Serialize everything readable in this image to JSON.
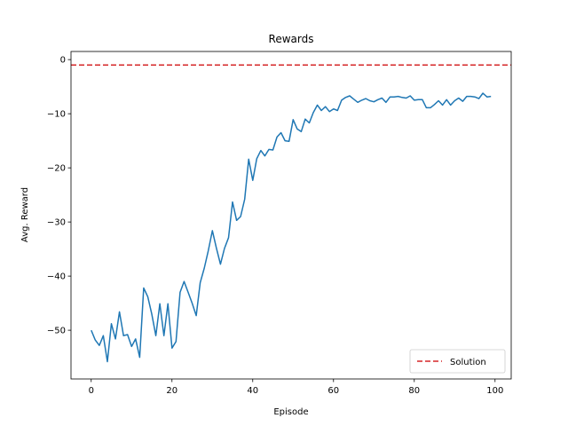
{
  "chart_data": {
    "type": "line",
    "title": "Rewards",
    "xlabel": "Episode",
    "ylabel": "Avg. Reward",
    "xlim": [
      -5,
      104
    ],
    "ylim": [
      -59,
      1.5
    ],
    "xticks": [
      0,
      20,
      40,
      60,
      80,
      100
    ],
    "yticks": [
      0,
      -10,
      -20,
      -30,
      -40,
      -50
    ],
    "grid": false,
    "legend_position": "lower right",
    "series": [
      {
        "color": "#1f77b4",
        "x": [
          0,
          1,
          2,
          3,
          4,
          5,
          6,
          7,
          8,
          9,
          10,
          11,
          12,
          13,
          14,
          15,
          16,
          17,
          18,
          19,
          20,
          21,
          22,
          23,
          24,
          25,
          26,
          27,
          28,
          29,
          30,
          31,
          32,
          33,
          34,
          35,
          36,
          37,
          38,
          39,
          40,
          41,
          42,
          43,
          44,
          45,
          46,
          47,
          48,
          49,
          50,
          51,
          52,
          53,
          54,
          55,
          56,
          57,
          58,
          59,
          60,
          61,
          62,
          63,
          64,
          65,
          66,
          67,
          68,
          69,
          70,
          71,
          72,
          73,
          74,
          75,
          76,
          77,
          78,
          79,
          80,
          81,
          82,
          83,
          84,
          85,
          86,
          87,
          88,
          89,
          90,
          91,
          92,
          93,
          94,
          95,
          96,
          97,
          98,
          99
        ],
        "values": [
          -50,
          -51.8,
          -52.8,
          -51,
          -55.8,
          -48.8,
          -51.6,
          -46.6,
          -51,
          -50.8,
          -53,
          -51.6,
          -55,
          -42.2,
          -43.8,
          -47,
          -51,
          -45.1,
          -51,
          -45.1,
          -53.3,
          -52.1,
          -43,
          -41,
          -43,
          -45,
          -47.3,
          -41.2,
          -38.5,
          -35.3,
          -31.6,
          -34.8,
          -37.8,
          -34.9,
          -32.9,
          -26.3,
          -29.7,
          -29,
          -25.8,
          -18.4,
          -22.3,
          -18.3,
          -16.8,
          -17.8,
          -16.6,
          -16.7,
          -14.3,
          -13.5,
          -15,
          -15.1,
          -11.1,
          -12.8,
          -13.3,
          -11,
          -11.7,
          -9.8,
          -8.4,
          -9.4,
          -8.7,
          -9.6,
          -9.1,
          -9.4,
          -7.5,
          -7,
          -6.7,
          -7.3,
          -7.9,
          -7.5,
          -7.2,
          -7.6,
          -7.8,
          -7.4,
          -7.1,
          -7.9,
          -6.9,
          -6.9,
          -6.8,
          -7,
          -7.1,
          -6.7,
          -7.5,
          -7.4,
          -7.4,
          -8.9,
          -8.9,
          -8.3,
          -7.6,
          -8.4,
          -7.4,
          -8.4,
          -7.6,
          -7.1,
          -7.7,
          -6.8,
          -6.8,
          -6.9,
          -7.2,
          -6.2,
          -6.9,
          -6.8
        ]
      },
      {
        "name": "Solution",
        "color": "#d62728",
        "style": "dashed",
        "y": -1
      }
    ]
  }
}
